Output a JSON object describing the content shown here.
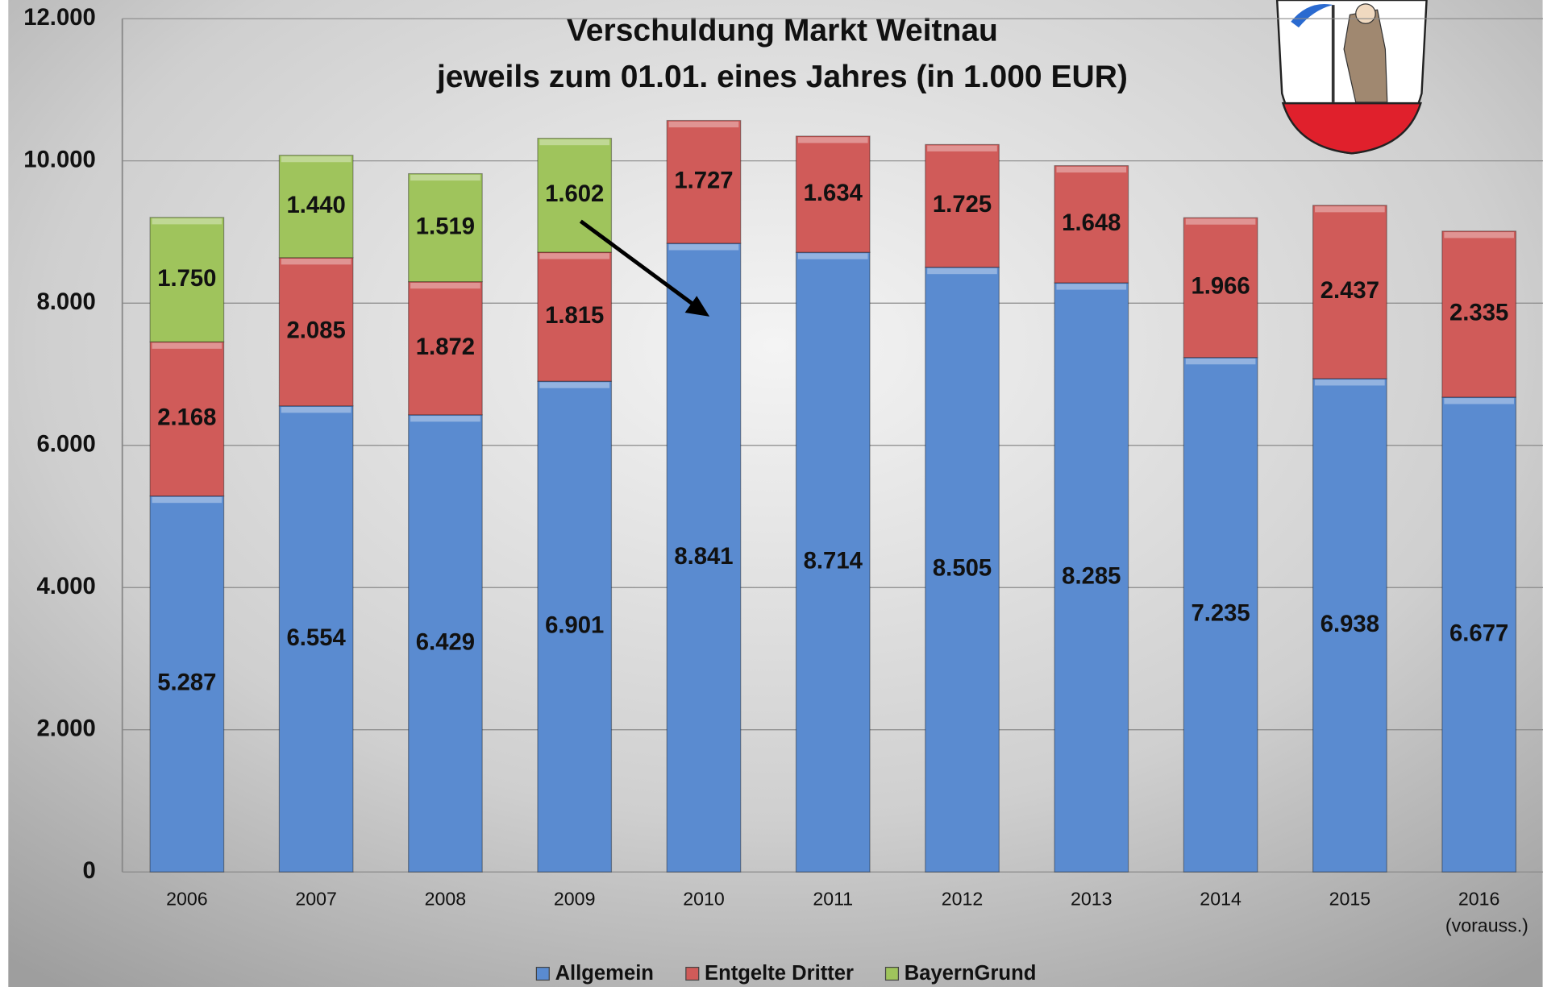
{
  "chart_data": {
    "type": "stacked_bar",
    "title": "Verschuldung  Markt Weitnau",
    "subtitle": "jeweils zum 01.01. eines Jahres (in 1.000 EUR)",
    "categories": [
      "2006",
      "2007",
      "2008",
      "2009",
      "2010",
      "2011",
      "2012",
      "2013",
      "2014",
      "2015",
      "2016\n(vorauss.)"
    ],
    "series": [
      {
        "name": "Allgemein",
        "color": "#5a8bd0",
        "values": [
          5287,
          6554,
          6429,
          6901,
          8841,
          8714,
          8505,
          8285,
          7235,
          6938,
          6677
        ],
        "value_labels": [
          "5.287",
          "6.554",
          "6.429",
          "6.901",
          "8.841",
          "8.714",
          "8.505",
          "8.285",
          "7.235",
          "6.938",
          "6.677"
        ]
      },
      {
        "name": "Entgelte Dritter",
        "color": "#d05b59",
        "values": [
          2168,
          2085,
          1872,
          1815,
          1727,
          1634,
          1725,
          1648,
          1966,
          2437,
          2335
        ],
        "value_labels": [
          "2.168",
          "2.085",
          "1.872",
          "1.815",
          "1.727",
          "1.634",
          "1.725",
          "1.648",
          "1.966",
          "2.437",
          "2.335"
        ]
      },
      {
        "name": "BayernGrund",
        "color": "#9fc45c",
        "values": [
          1750,
          1440,
          1519,
          1602,
          null,
          null,
          null,
          null,
          null,
          null,
          null
        ],
        "value_labels": [
          "1.750",
          "1.440",
          "1.519",
          "1.602",
          null,
          null,
          null,
          null,
          null,
          null,
          null
        ]
      }
    ],
    "ylim": [
      0,
      12000
    ],
    "yticks": [
      0,
      {
        "value": 2000,
        "label": "2.000"
      },
      {
        "value": 4000,
        "label": "4.000"
      },
      {
        "value": 6000,
        "label": "6.000"
      },
      {
        "value": 8000,
        "label": "8.000"
      },
      {
        "value": 10000,
        "label": "10.000"
      },
      {
        "value": 12000,
        "label": "12.000"
      }
    ],
    "grid": true,
    "legend": "bottom"
  }
}
